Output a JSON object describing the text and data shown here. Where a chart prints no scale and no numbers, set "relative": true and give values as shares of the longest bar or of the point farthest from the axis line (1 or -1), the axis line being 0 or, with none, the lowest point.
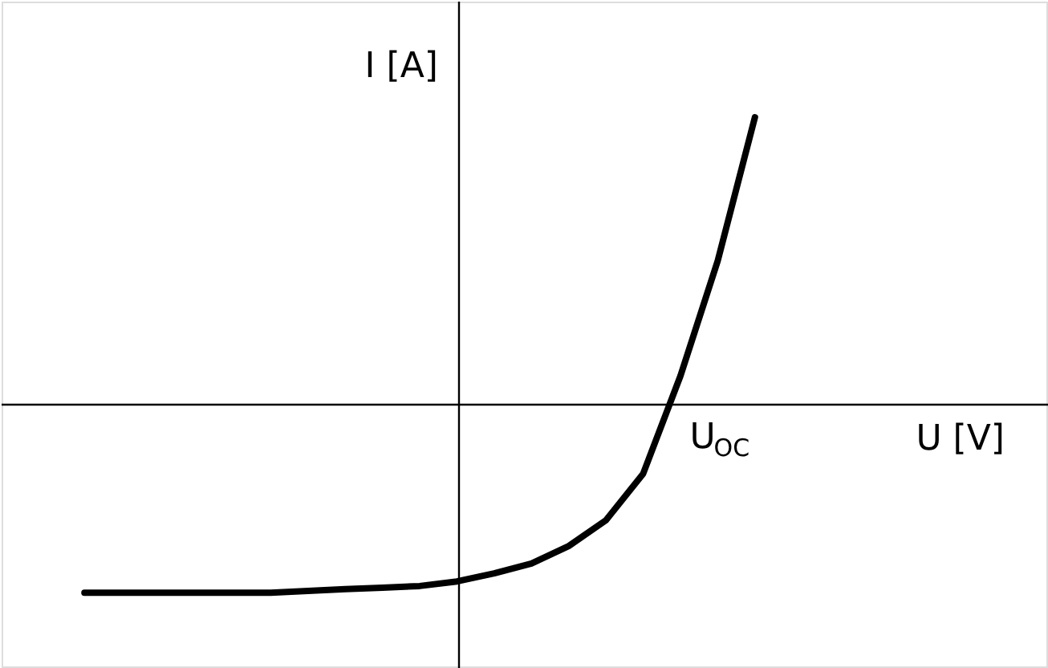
{
  "chart_data": {
    "type": "line",
    "relative": true,
    "xlabel": "U [V]",
    "ylabel": "I [A]",
    "grid": false,
    "marker": "none",
    "line_style": "solid",
    "annotations": [
      "U$_{OC}$"
    ],
    "categories": [
      null,
      null,
      null,
      null,
      null,
      null,
      null,
      null,
      null,
      null,
      null,
      null,
      null,
      null,
      null,
      null,
      null,
      null,
      null
    ],
    "series": [
      {
        "color": "#000000",
        "values": [
          -0.654,
          -0.654,
          -0.654,
          -0.654,
          -0.654,
          -0.654,
          -0.648,
          -0.642,
          -0.637,
          -0.631,
          -0.615,
          -0.587,
          -0.553,
          -0.492,
          -0.402,
          -0.24,
          0.1,
          0.5,
          1.0
        ]
      }
    ]
  }
}
